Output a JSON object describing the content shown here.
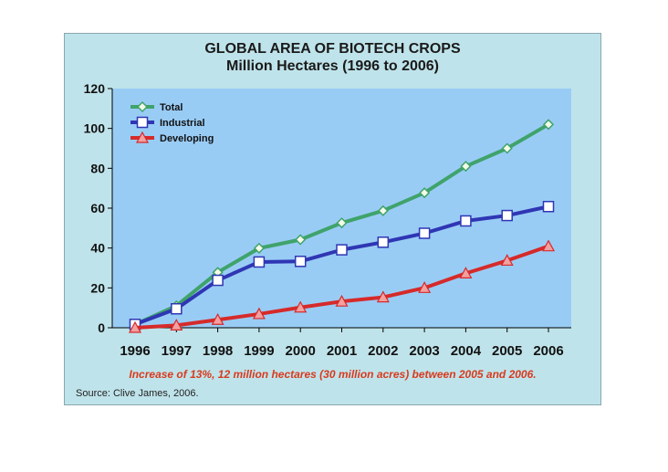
{
  "colors": {
    "panel_bg": "#bfe3ea",
    "plot_bg": "#99ccf5",
    "total": "#3fa36b",
    "industrial": "#2f36b4",
    "developing": "#d62a2a",
    "note": "#d83a1e"
  },
  "chart_data": {
    "type": "line",
    "title": "GLOBAL AREA OF BIOTECH CROPS",
    "subtitle": "Million Hectares (1996 to 2006)",
    "categories": [
      "1996",
      "1997",
      "1998",
      "1999",
      "2000",
      "2001",
      "2002",
      "2003",
      "2004",
      "2005",
      "2006"
    ],
    "series": [
      {
        "name": "Total",
        "marker": "diamond",
        "values": [
          1.7,
          11,
          27.8,
          39.9,
          44.2,
          52.6,
          58.7,
          67.7,
          81.0,
          90.0,
          102.0
        ]
      },
      {
        "name": "Industrial",
        "marker": "square",
        "values": [
          1.7,
          9.5,
          23.8,
          33,
          33.3,
          39.1,
          42.9,
          47.4,
          53.6,
          56.3,
          60.8
        ]
      },
      {
        "name": "Developing",
        "marker": "triangle",
        "values": [
          0,
          1.2,
          4,
          6.9,
          10.2,
          13.2,
          15.3,
          20.0,
          27.3,
          33.7,
          40.9
        ]
      }
    ],
    "ylim": [
      0,
      120
    ],
    "yticks": [
      "0",
      "20",
      "40",
      "60",
      "80",
      "100",
      "120"
    ],
    "legend_position": "top-left",
    "grid": false
  },
  "footer": {
    "note": "Increase of 13%, 12 million hectares (30 million acres) between 2005 and 2006.",
    "source": "Source: Clive James, 2006."
  }
}
